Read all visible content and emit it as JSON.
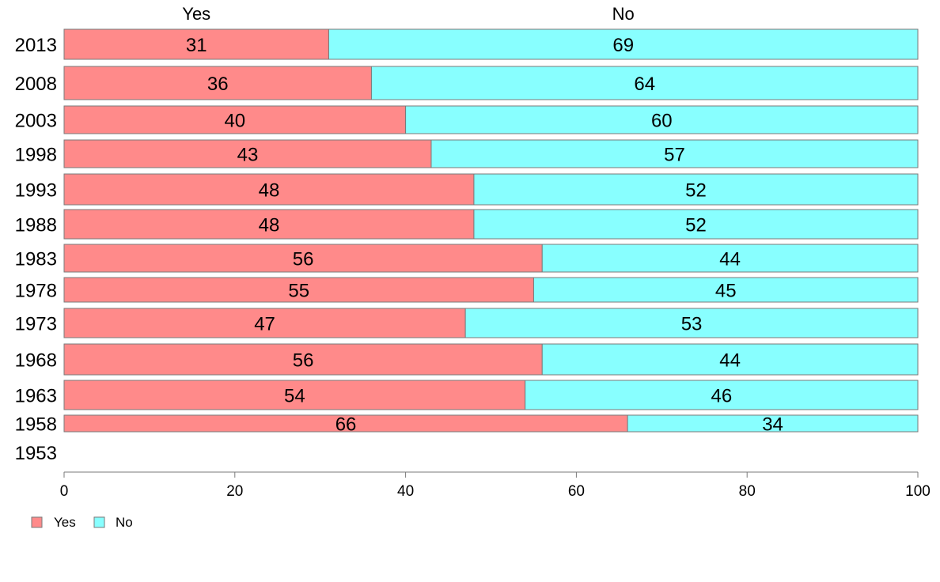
{
  "chart_data": {
    "type": "bar",
    "orientation": "horizontal",
    "stacked": true,
    "title": "",
    "xlabel": "",
    "ylabel": "",
    "xlim": [
      0,
      100
    ],
    "x_ticks": [
      "0",
      "20",
      "40",
      "60",
      "80",
      "100"
    ],
    "grid": false,
    "legend_position": "bottom-left",
    "column_headers": [
      "Yes",
      "No"
    ],
    "categories": [
      "2013",
      "2008",
      "2003",
      "1998",
      "1993",
      "1988",
      "1983",
      "1978",
      "1973",
      "1968",
      "1963",
      "1958",
      "1953"
    ],
    "series": [
      {
        "name": "Yes",
        "color": "#ff8a8a",
        "values": [
          31,
          36,
          40,
          43,
          48,
          48,
          56,
          55,
          47,
          56,
          54,
          66,
          null
        ],
        "labels": [
          "31",
          "36",
          "40",
          "43",
          "48",
          "48",
          "56",
          "55",
          "47",
          "56",
          "54",
          "66",
          ""
        ]
      },
      {
        "name": "No",
        "color": "#88ffff",
        "values": [
          69,
          64,
          60,
          57,
          52,
          52,
          44,
          45,
          53,
          44,
          46,
          34,
          null
        ],
        "labels": [
          "69",
          "64",
          "60",
          "57",
          "52",
          "52",
          "44",
          "45",
          "53",
          "44",
          "46",
          "34",
          ""
        ]
      }
    ],
    "legend": [
      {
        "label": "Yes",
        "color": "#ff8a8a"
      },
      {
        "label": "No",
        "color": "#88ffff"
      }
    ]
  }
}
